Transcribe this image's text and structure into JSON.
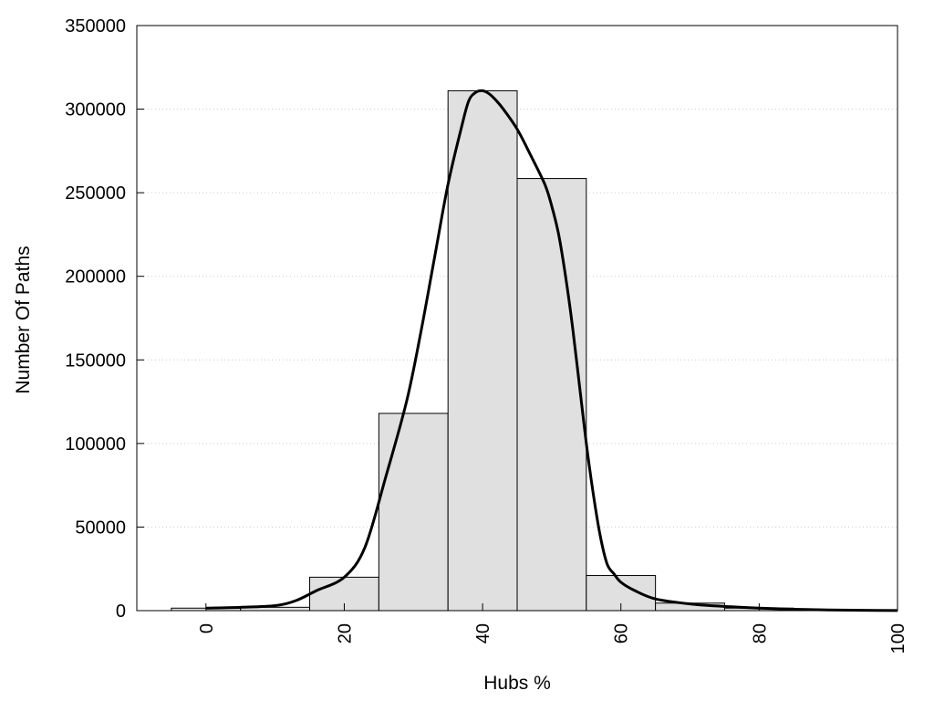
{
  "chart_data": {
    "type": "bar",
    "title": "",
    "xlabel": "Hubs %",
    "ylabel": "Number Of Paths",
    "xlim": [
      -10,
      100
    ],
    "ylim": [
      0,
      350000
    ],
    "x_ticks": [
      0,
      20,
      40,
      60,
      80,
      100
    ],
    "x_tick_labels": [
      "0",
      "20",
      "40",
      "60",
      "80",
      "100"
    ],
    "y_ticks": [
      0,
      50000,
      100000,
      150000,
      200000,
      250000,
      300000,
      350000
    ],
    "y_tick_labels": [
      "0",
      "50000",
      "100000",
      "150000",
      "200000",
      "250000",
      "300000",
      "350000"
    ],
    "grid": "horizontal dotted",
    "colors": {
      "bar_fill": "#e0e0e0",
      "bar_stroke": "#000000",
      "curve": "#000000",
      "grid": "#cccccc"
    },
    "series": [
      {
        "type": "bar",
        "bin_width": 10,
        "x": [
          0,
          10,
          20,
          30,
          40,
          50,
          60,
          70,
          80,
          90,
          100
        ],
        "values": [
          1500,
          2000,
          20000,
          118000,
          311000,
          258500,
          21000,
          4500,
          1500,
          500,
          300
        ]
      },
      {
        "type": "line",
        "x": [
          0,
          5,
          10,
          13,
          16,
          20,
          23,
          26,
          29,
          31,
          33,
          35,
          37,
          38,
          39,
          40,
          41,
          42,
          43,
          45,
          47,
          49,
          50,
          51,
          52,
          53,
          54,
          55,
          56,
          57,
          58,
          59,
          60,
          62,
          65,
          70,
          75,
          80,
          85,
          90,
          95,
          100
        ],
        "values": [
          1500,
          2000,
          3000,
          6000,
          12000,
          20000,
          38000,
          80000,
          125000,
          165000,
          210000,
          255000,
          290000,
          305000,
          310000,
          311000,
          309000,
          305000,
          300000,
          288000,
          272000,
          255000,
          242000,
          225000,
          200000,
          170000,
          135000,
          100000,
          70000,
          45000,
          28000,
          22000,
          17000,
          12000,
          7000,
          4000,
          2500,
          1500,
          800,
          400,
          200,
          100
        ]
      }
    ]
  }
}
